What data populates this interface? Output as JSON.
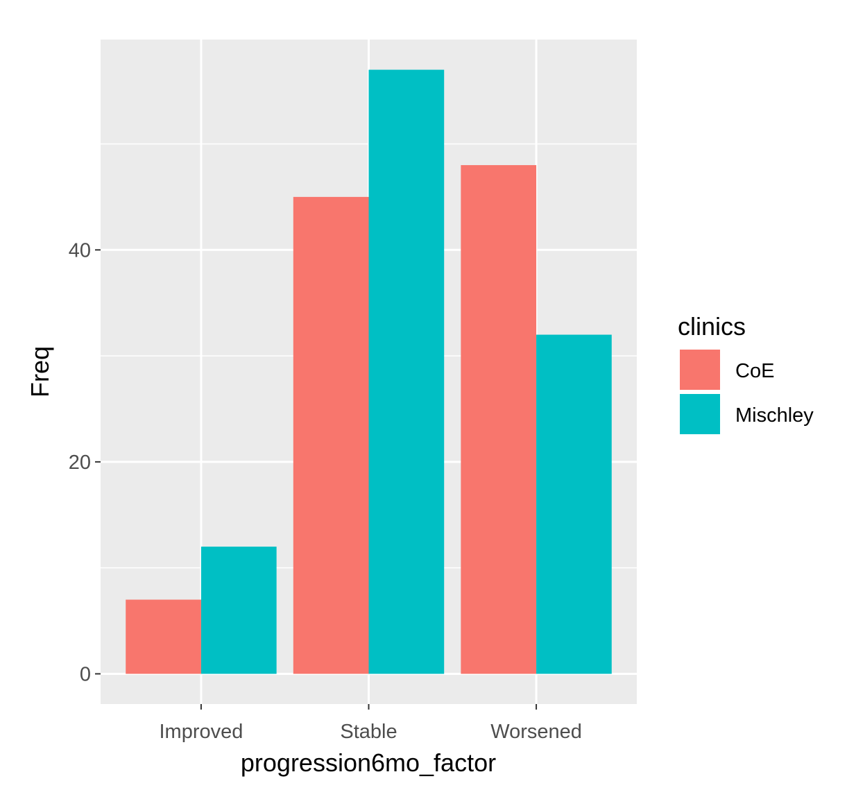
{
  "chart_data": {
    "type": "bar",
    "categories": [
      "Improved",
      "Stable",
      "Worsened"
    ],
    "series": [
      {
        "name": "CoE",
        "values": [
          7,
          45,
          48
        ],
        "color": "#F8766D"
      },
      {
        "name": "Mischley",
        "values": [
          12,
          57,
          32
        ],
        "color": "#00BFC4"
      }
    ],
    "xlabel": "progression6mo_factor",
    "ylabel": "Freq",
    "ylim": [
      -2.85,
      59.85
    ],
    "yticks": [
      0,
      20,
      40
    ],
    "y_minor_ticks": [
      10,
      30,
      50
    ],
    "grid": true,
    "panel_background": "#EBEBEB",
    "legend": {
      "title": "clinics",
      "position": "right"
    }
  }
}
